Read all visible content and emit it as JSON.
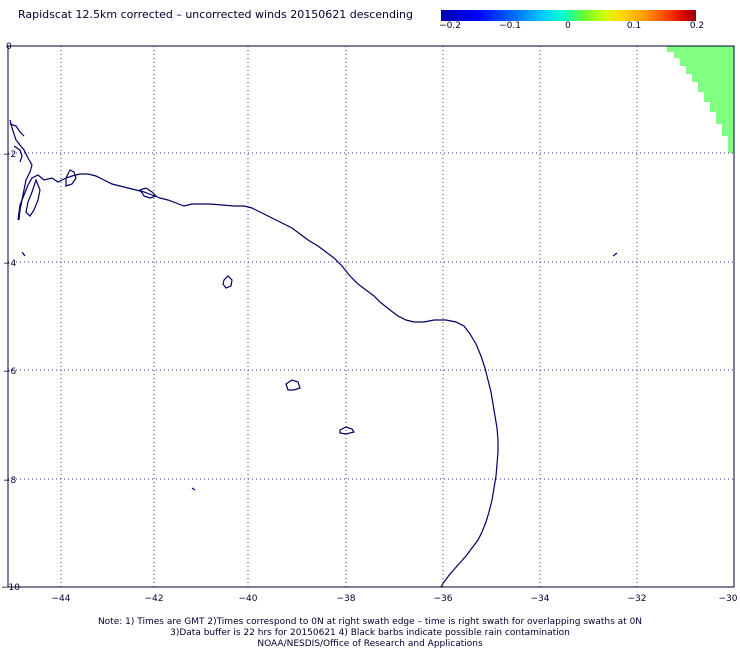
{
  "title": "Rapidscat 12.5km corrected – uncorrected winds 20150621 descending",
  "colorbar": {
    "ticks": [
      "−0.2",
      "−0.1",
      "0",
      "0.1",
      "0.2"
    ]
  },
  "axes": {
    "x_ticks": [
      "−44",
      "−42",
      "−40",
      "−38",
      "−36",
      "−34",
      "−32",
      "−30"
    ],
    "y_ticks": [
      "0",
      "−2",
      "−4",
      "−6",
      "−8",
      "−10"
    ]
  },
  "notes": {
    "line1": "Note: 1) Times are GMT 2)Times correspond to 0N at right swath edge – time is right swath for overlapping swaths at 0N",
    "line2": "3)Data buffer is 22 hrs for 20150621 4) Black barbs indicate possible rain contamination",
    "line3": "NOAA/NESDIS/Office of Research and Applications"
  },
  "colors": {
    "coastline": "#000066",
    "grid": "#3333aa",
    "swath": "#80ff80"
  }
}
